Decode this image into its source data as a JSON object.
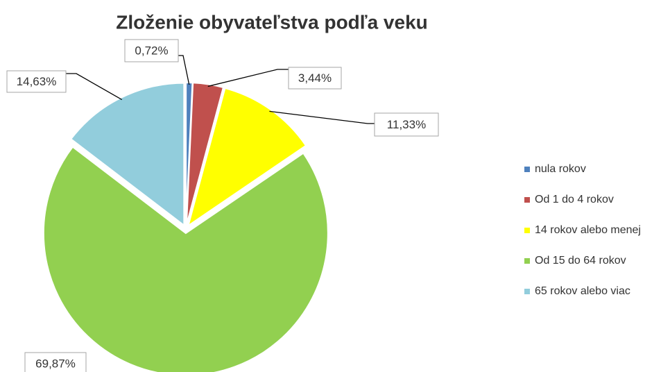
{
  "chart_data": {
    "type": "pie",
    "title": "Zloženie obyvateľstva podľa veku",
    "categories": [
      "nula rokov",
      "Od 1 do 4 rokov",
      "14 rokov alebo menej",
      "Od 15 do 64 rokov",
      "65 rokov alebo viac"
    ],
    "values": [
      0.72,
      3.44,
      11.33,
      69.87,
      14.63
    ],
    "value_labels": [
      "0,72%",
      "3,44%",
      "11,33%",
      "69,87%",
      "14,63%"
    ],
    "colors": [
      "#4f81bd",
      "#c0504d",
      "#ffff00",
      "#92d050",
      "#92cddc"
    ],
    "legend": "right"
  }
}
